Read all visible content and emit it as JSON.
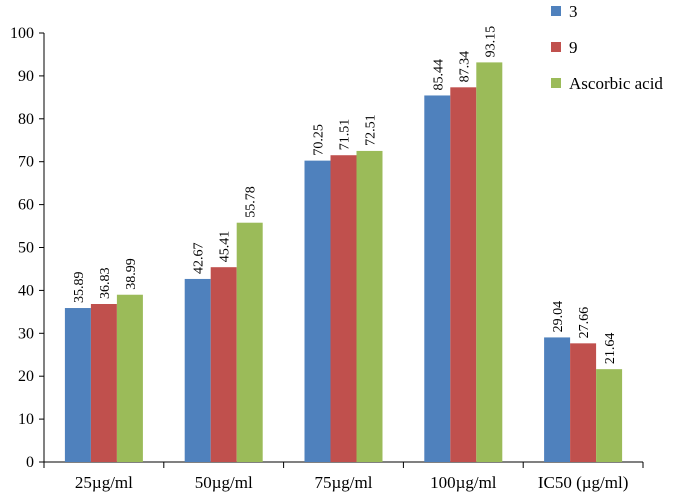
{
  "chart_data": {
    "type": "bar",
    "title": "",
    "xlabel": "",
    "ylabel": "",
    "ylim": [
      0,
      100
    ],
    "yticks": [
      0,
      10,
      20,
      30,
      40,
      50,
      60,
      70,
      80,
      90,
      100
    ],
    "grid": false,
    "legend_position": "top-right",
    "categories": [
      "25µg/ml",
      "50µg/ml",
      "75µg/ml",
      "100µg/ml",
      "IC50 (µg/ml)"
    ],
    "series": [
      {
        "name": "3",
        "color": "#4F81BD",
        "values": [
          35.89,
          42.67,
          70.25,
          85.44,
          29.04
        ],
        "labels": [
          "35.89",
          "42.67",
          "70.25",
          "85.44",
          "29.04"
        ]
      },
      {
        "name": "9",
        "color": "#C0504D",
        "values": [
          36.83,
          45.41,
          71.51,
          87.34,
          27.66
        ],
        "labels": [
          "36.83",
          "45.41",
          "71.51",
          "87.34",
          "27.66"
        ]
      },
      {
        "name": "Ascorbic acid",
        "color": "#9BBB59",
        "values": [
          38.99,
          55.78,
          72.51,
          93.15,
          21.64
        ],
        "labels": [
          "38.99",
          "55.78",
          "72.51",
          "93.15",
          "21.64"
        ]
      }
    ]
  }
}
